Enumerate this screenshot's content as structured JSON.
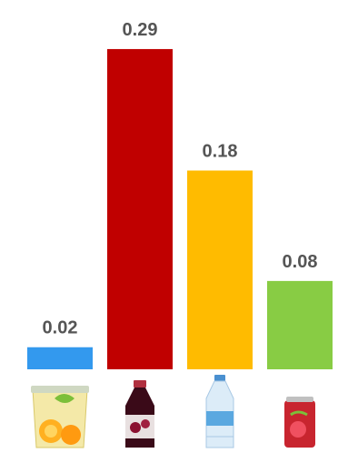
{
  "chart_data": {
    "type": "bar",
    "title": "",
    "xlabel": "",
    "ylabel": "",
    "ylim": [
      0,
      0.3
    ],
    "grid": false,
    "legend": "none",
    "categories": [
      {
        "name": "juice-cup",
        "icon": "juice-cup-icon",
        "color": "#3399ee"
      },
      {
        "name": "juice-bottle",
        "icon": "juice-bottle-icon",
        "color": "#c00000"
      },
      {
        "name": "water-bottle",
        "icon": "water-bottle-icon",
        "color": "#ffbb00"
      },
      {
        "name": "soda-can",
        "icon": "soda-can-icon",
        "color": "#88cc44"
      }
    ],
    "values": [
      0.02,
      0.29,
      0.18,
      0.08
    ],
    "value_labels": [
      "0.02",
      "0.29",
      "0.18",
      "0.08"
    ]
  }
}
